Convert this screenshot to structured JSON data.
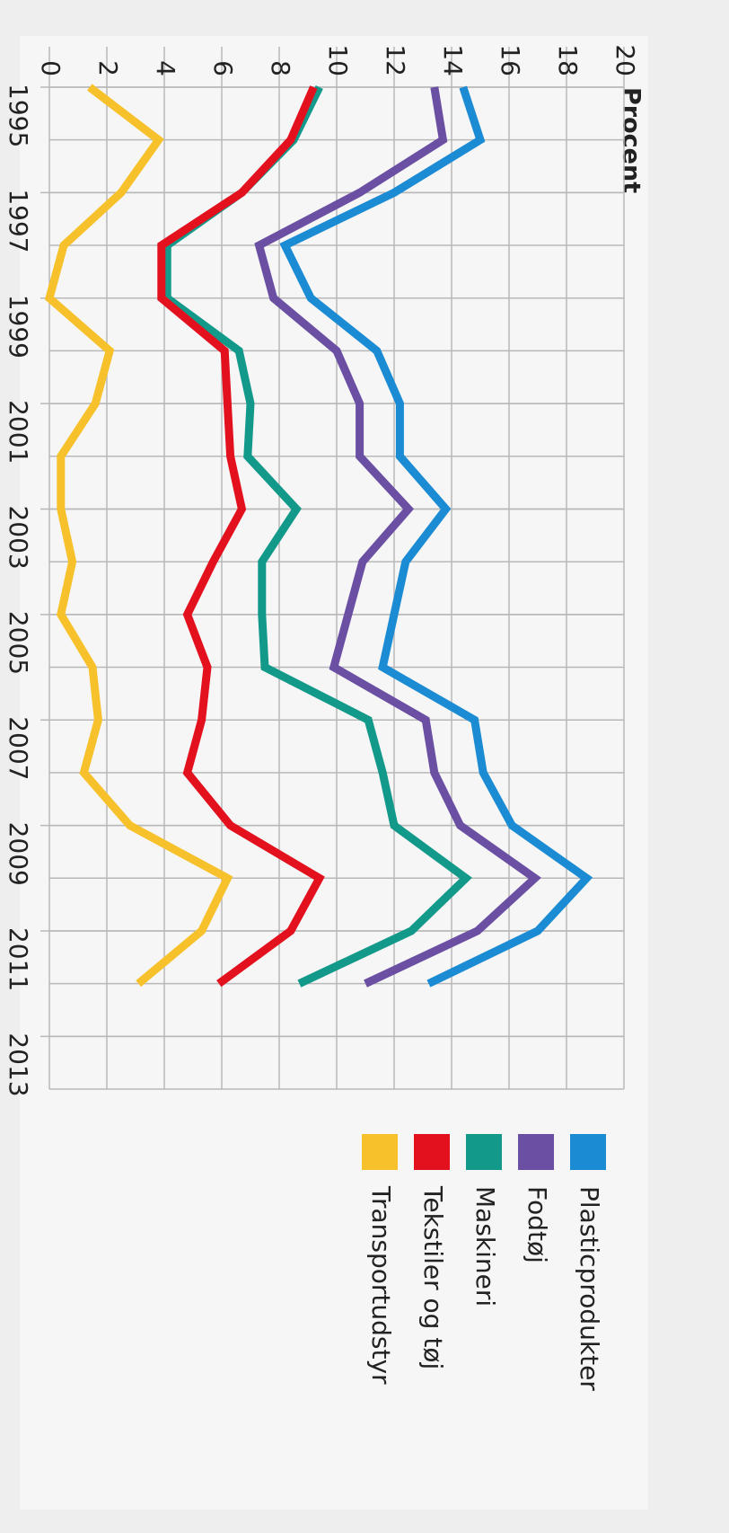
{
  "chart_data": {
    "type": "line",
    "title": "Procent",
    "x": [
      1995,
      1996,
      1997,
      1998,
      1999,
      2000,
      2001,
      2002,
      2003,
      2004,
      2005,
      2006,
      2007,
      2008,
      2009,
      2010,
      2011,
      2012
    ],
    "xlim": [
      1995,
      2014
    ],
    "xticks": [
      1995,
      1997,
      1999,
      2001,
      2003,
      2005,
      2007,
      2009,
      2011,
      2013
    ],
    "ylim": [
      0,
      20
    ],
    "yticks": [
      0,
      2,
      4,
      6,
      8,
      10,
      12,
      14,
      16,
      18,
      20
    ],
    "grid": true,
    "series": [
      {
        "name": "Plasticprodukter",
        "color": "#1b8bd3",
        "values": [
          14.4,
          15.0,
          12.0,
          8.2,
          9.1,
          11.4,
          12.2,
          12.2,
          13.8,
          12.4,
          12.0,
          11.6,
          14.8,
          15.1,
          16.1,
          18.7,
          17.0,
          13.2
        ]
      },
      {
        "name": "Fodtøj",
        "color": "#6a4fa3",
        "values": [
          13.4,
          13.7,
          10.8,
          7.3,
          7.8,
          10.0,
          10.8,
          10.8,
          12.5,
          10.9,
          10.4,
          9.9,
          13.1,
          13.4,
          14.3,
          16.9,
          14.9,
          11.0
        ]
      },
      {
        "name": "Maskineri",
        "color": "#12998a",
        "values": [
          9.4,
          8.5,
          6.7,
          4.1,
          4.1,
          6.6,
          7.0,
          6.9,
          8.6,
          7.4,
          7.4,
          7.5,
          11.1,
          11.6,
          12.0,
          14.5,
          12.6,
          8.7
        ]
      },
      {
        "name": "Tekstiler og tøj",
        "color": "#e3101e",
        "values": [
          9.2,
          8.4,
          6.7,
          3.9,
          3.9,
          6.1,
          6.2,
          6.3,
          6.7,
          5.7,
          4.8,
          5.5,
          5.3,
          4.8,
          6.3,
          9.4,
          8.4,
          5.9
        ]
      },
      {
        "name": "Transportudstyr",
        "color": "#f7c12b",
        "values": [
          1.4,
          3.8,
          2.5,
          0.5,
          0.0,
          2.1,
          1.6,
          0.4,
          0.4,
          0.8,
          0.4,
          1.5,
          1.7,
          1.2,
          2.8,
          6.2,
          5.3,
          3.1
        ]
      }
    ]
  }
}
